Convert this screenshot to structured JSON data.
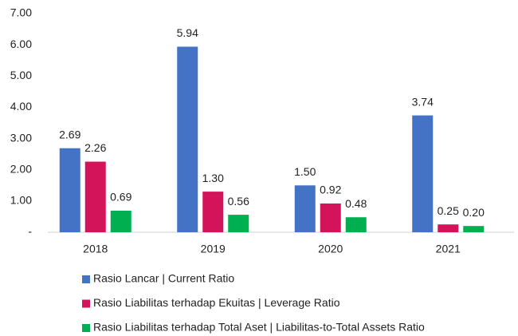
{
  "chart_data": {
    "type": "bar",
    "categories": [
      "2018",
      "2019",
      "2020",
      "2021"
    ],
    "series": [
      {
        "name": "Rasio Lancar | Current Ratio",
        "color": "#4472c4",
        "values": [
          2.69,
          5.94,
          1.5,
          3.74
        ],
        "value_labels": [
          "2.69",
          "5.94",
          "1.50",
          "3.74"
        ]
      },
      {
        "name": "Rasio Liabilitas terhadap Ekuitas | Leverage Ratio",
        "color": "#d4145a",
        "values": [
          2.26,
          1.3,
          0.92,
          0.25
        ],
        "value_labels": [
          "2.26",
          "1.30",
          "0.92",
          "0.25"
        ]
      },
      {
        "name": "Rasio Liabilitas terhadap Total Aset | Liabilitas-to-Total Assets Ratio",
        "color": "#00b050",
        "values": [
          0.69,
          0.56,
          0.48,
          0.2
        ],
        "value_labels": [
          "0.69",
          "0.56",
          "0.48",
          "0.20"
        ]
      }
    ],
    "ylim": [
      0,
      7
    ],
    "yticks": [
      {
        "value": 0,
        "label": "-"
      },
      {
        "value": 1,
        "label": "1.00"
      },
      {
        "value": 2,
        "label": "2.00"
      },
      {
        "value": 3,
        "label": "3.00"
      },
      {
        "value": 4,
        "label": "4.00"
      },
      {
        "value": 5,
        "label": "5.00"
      },
      {
        "value": 6,
        "label": "6.00"
      },
      {
        "value": 7,
        "label": "7.00"
      }
    ],
    "grid": false,
    "legend": "bottom"
  }
}
